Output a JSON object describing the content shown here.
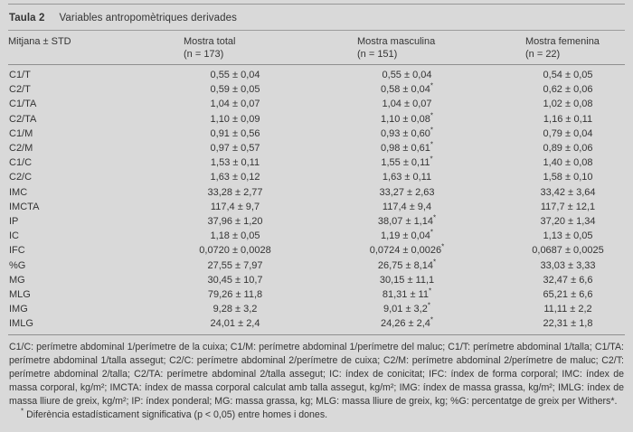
{
  "page": {
    "background": "#d9d9d9",
    "text_color": "#343434",
    "rule_color": "#8f8f8f"
  },
  "table": {
    "title_label": "Taula 2",
    "title_text": "Variables antropomètriques derivades",
    "columns": [
      {
        "label": "Mitjana ± STD",
        "sub": ""
      },
      {
        "label": "Mostra total",
        "sub": "(n = 173)"
      },
      {
        "label": "Mostra masculina",
        "sub": "(n = 151)"
      },
      {
        "label": "Mostra femenina",
        "sub": "(n = 22)"
      }
    ],
    "rows": [
      {
        "variable": "C1/T",
        "total": "0,55 ± 0,04",
        "masculina": "0,55 ± 0,04",
        "femenina": "0,54 ± 0,05"
      },
      {
        "variable": "C2/T",
        "total": "0,59 ± 0,05",
        "masculina": "0,58 ± 0,04*",
        "femenina": "0,62 ± 0,06"
      },
      {
        "variable": "C1/TA",
        "total": "1,04 ± 0,07",
        "masculina": "1,04 ± 0,07",
        "femenina": "1,02 ± 0,08"
      },
      {
        "variable": "C2/TA",
        "total": "1,10 ± 0,09",
        "masculina": "1,10 ± 0,08*",
        "femenina": "1,16 ± 0,11"
      },
      {
        "variable": "C1/M",
        "total": "0,91 ± 0,56",
        "masculina": "0,93 ± 0,60*",
        "femenina": "0,79 ± 0,04"
      },
      {
        "variable": "C2/M",
        "total": "0,97 ± 0,57",
        "masculina": "0,98 ± 0,61*",
        "femenina": "0,89 ± 0,06"
      },
      {
        "variable": "C1/C",
        "total": "1,53 ± 0,11",
        "masculina": "1,55 ± 0,11*",
        "femenina": "1,40 ± 0,08"
      },
      {
        "variable": "C2/C",
        "total": "1,63 ± 0,12",
        "masculina": "1,63 ± 0,11",
        "femenina": "1,58 ± 0,10"
      },
      {
        "variable": "IMC",
        "total": "33,28 ± 2,77",
        "masculina": "33,27 ± 2,63",
        "femenina": "33,42 ± 3,64"
      },
      {
        "variable": "IMCTA",
        "total": "117,4 ± 9,7",
        "masculina": "117,4 ± 9,4",
        "femenina": "117,7 ± 12,1"
      },
      {
        "variable": "IP",
        "total": "37,96 ± 1,20",
        "masculina": "38,07 ± 1,14*",
        "femenina": "37,20 ± 1,34"
      },
      {
        "variable": "IC",
        "total": "1,18 ± 0,05",
        "masculina": "1,19 ± 0,04*",
        "femenina": "1,13 ± 0,05"
      },
      {
        "variable": "IFC",
        "total": "0,0720 ± 0,0028",
        "masculina": "0,0724 ± 0,0026*",
        "femenina": "0,0687 ± 0,0025"
      },
      {
        "variable": "%G",
        "total": "27,55 ± 7,97",
        "masculina": "26,75 ± 8,14*",
        "femenina": "33,03 ± 3,33"
      },
      {
        "variable": "MG",
        "total": "30,45 ± 10,7",
        "masculina": "30,15 ± 11,1",
        "femenina": "32,47 ± 6,6"
      },
      {
        "variable": "MLG",
        "total": "79,26 ± 11,8",
        "masculina": "81,31 ± 11*",
        "femenina": "65,21 ± 6,6"
      },
      {
        "variable": "IMG",
        "total": "9,28 ± 3,2",
        "masculina": "9,01 ± 3,2*",
        "femenina": "11,11 ± 2,2"
      },
      {
        "variable": "IMLG",
        "total": "24,01 ± 2,4",
        "masculina": "24,26 ± 2,4*",
        "femenina": "22,31 ± 1,8"
      }
    ]
  },
  "footnotes": {
    "abbreviations": "C1/C: perímetre abdominal 1/perímetre de la cuixa; C1/M: perímetre abdominal 1/perímetre del maluc; C1/T: perímetre abdominal 1/talla; C1/TA: perímetre abdominal 1/talla assegut; C2/C: perímetre abdominal 2/perímetre de cuixa; C2/M: perímetre abdominal 2/perímetre de maluc; C2/T: perímetre abdominal 2/talla; C2/TA: perímetre abdominal 2/talla assegut; IC: índex de conicitat; IFC: índex de forma corporal; IMC: índex de massa corporal, kg/m²; IMCTA: índex de massa corporal calculat amb talla assegut, kg/m²; IMG: índex de massa grassa, kg/m²; IMLG: índex de massa lliure de greix, kg/m²; IP: índex ponderal; MG: massa grassa, kg; MLG: massa lliure de greix, kg; %G: percentatge de greix per Withers*.",
    "significance_marker": "*",
    "significance": " Diferència estadísticament significativa (p < 0,05) entre homes i dones."
  }
}
